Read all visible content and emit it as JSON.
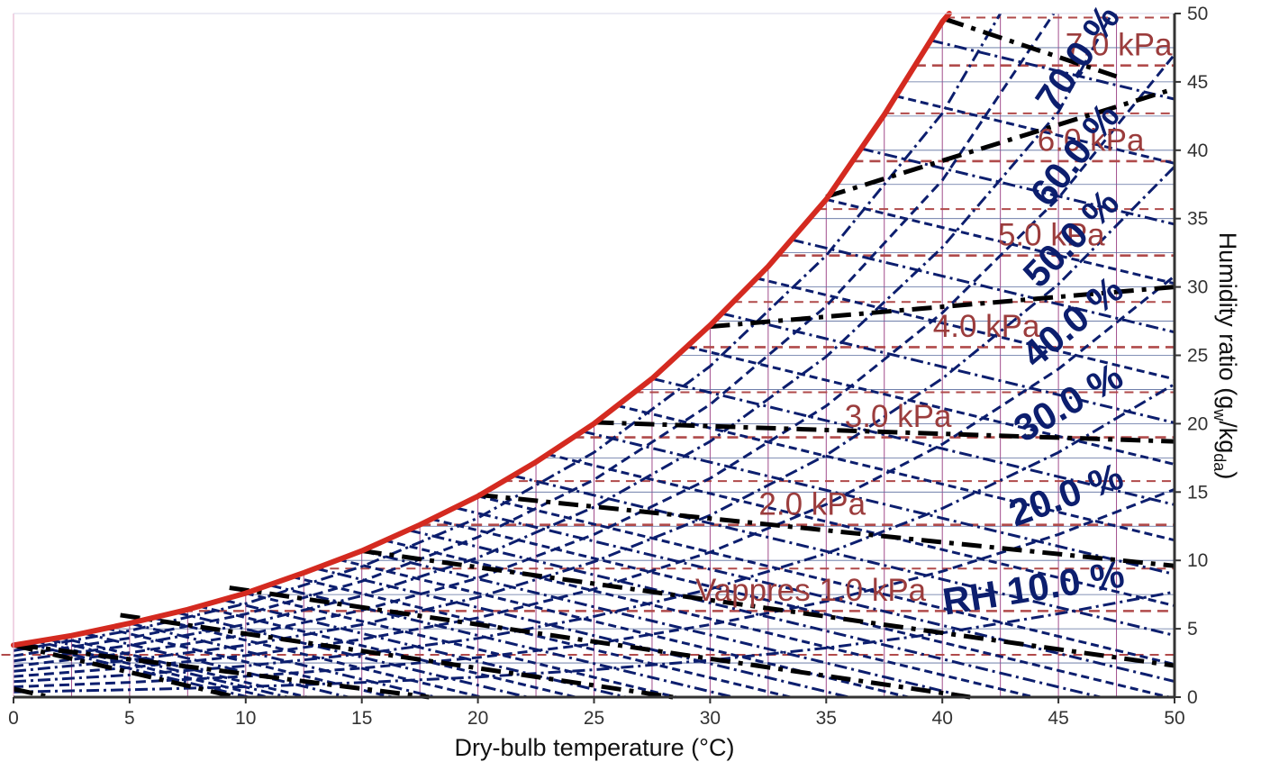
{
  "chart_data": {
    "type": "line",
    "title": "",
    "xlabel": "Dry-bulb temperature (°C)",
    "ylabel": "Humidity ratio (g",
    "ylabel_sub1": "w",
    "ylabel_mid": "/kg",
    "ylabel_sub2": "da",
    "ylabel_end": ")",
    "xlim": [
      0,
      50
    ],
    "ylim": [
      0,
      50
    ],
    "x_ticks": [
      "0",
      "5",
      "10",
      "15",
      "20",
      "25",
      "30",
      "35",
      "40",
      "45",
      "50"
    ],
    "y_ticks": [
      "0",
      "5",
      "10",
      "15",
      "20",
      "25",
      "30",
      "35",
      "40",
      "45",
      "50"
    ],
    "grid": true,
    "saturation_curve": {
      "name": "saturation",
      "x": [
        0,
        2.5,
        5,
        7.5,
        10,
        12.5,
        15,
        17.5,
        20,
        22.5,
        25,
        27.5,
        30,
        32.5,
        35,
        37.5,
        40,
        40.3
      ],
      "y": [
        3.8,
        4.5,
        5.4,
        6.4,
        7.6,
        9.1,
        10.7,
        12.6,
        14.7,
        17.2,
        20.0,
        23.3,
        27.2,
        31.5,
        36.4,
        42.6,
        49.4,
        50.0
      ]
    },
    "relative_humidity_lines": [
      {
        "rh": 10,
        "label": "RH 10.0 %",
        "x": [
          0,
          5,
          10,
          15,
          20,
          25,
          30,
          35,
          40,
          45,
          50
        ],
        "y": [
          0.38,
          0.54,
          0.76,
          1.07,
          1.47,
          2.0,
          2.7,
          3.6,
          4.7,
          6.1,
          7.7
        ]
      },
      {
        "rh": 20,
        "label": "20.0 %",
        "x": [
          0,
          5,
          10,
          15,
          20,
          25,
          30,
          35,
          40,
          45,
          50
        ],
        "y": [
          0.75,
          1.08,
          1.52,
          2.12,
          2.9,
          3.9,
          5.3,
          7.0,
          9.2,
          11.9,
          15.2
        ]
      },
      {
        "rh": 30,
        "label": "30.0 %",
        "x": [
          0,
          5,
          10,
          15,
          20,
          25,
          30,
          35,
          40,
          45,
          50
        ],
        "y": [
          1.13,
          1.62,
          2.28,
          3.17,
          4.3,
          5.9,
          7.9,
          10.5,
          13.8,
          17.9,
          22.9
        ]
      },
      {
        "rh": 40,
        "label": "40.0 %",
        "x": [
          0,
          5,
          10,
          15,
          20,
          25,
          30,
          35,
          40,
          45,
          50
        ],
        "y": [
          1.51,
          2.16,
          3.04,
          4.23,
          5.8,
          7.9,
          10.6,
          14.1,
          18.5,
          24.0,
          30.8
        ]
      },
      {
        "rh": 50,
        "label": "50.0 %",
        "x": [
          0,
          5,
          10,
          15,
          20,
          25,
          30,
          35,
          40,
          45,
          50
        ],
        "y": [
          1.89,
          2.7,
          3.8,
          5.3,
          7.3,
          9.9,
          13.3,
          17.7,
          23.3,
          30.2,
          38.8
        ]
      },
      {
        "rh": 60,
        "label": "60.0 %",
        "x": [
          0,
          5,
          10,
          15,
          20,
          25,
          30,
          35,
          40,
          45,
          50
        ],
        "y": [
          2.26,
          3.24,
          4.56,
          6.35,
          8.7,
          11.9,
          16.0,
          21.3,
          28.1,
          36.5,
          47.0
        ]
      },
      {
        "rh": 70,
        "label": "70.0 %",
        "x": [
          0,
          5,
          10,
          15,
          20,
          25,
          30,
          35,
          40,
          45,
          47.3
        ],
        "y": [
          2.64,
          3.78,
          5.32,
          7.41,
          10.2,
          13.9,
          18.7,
          24.9,
          32.9,
          42.8,
          50.0
        ]
      },
      {
        "rh": 80,
        "label": "",
        "x": [
          0,
          5,
          10,
          15,
          20,
          25,
          30,
          35,
          40,
          44.8
        ],
        "y": [
          3.02,
          4.32,
          6.08,
          8.48,
          11.7,
          15.9,
          21.4,
          28.6,
          37.8,
          50.0
        ]
      },
      {
        "rh": 90,
        "label": "",
        "x": [
          0,
          5,
          10,
          15,
          20,
          25,
          30,
          35,
          40,
          42.5
        ],
        "y": [
          3.4,
          4.86,
          6.84,
          9.55,
          13.1,
          17.9,
          24.2,
          32.3,
          42.7,
          50.0
        ]
      }
    ],
    "vapour_pressure_lines": [
      {
        "kpa": 1.0,
        "label": "Vappres 1.0 kPa",
        "y": 6.3
      },
      {
        "kpa": 2.0,
        "label": "2.0 kPa",
        "y": 12.6
      },
      {
        "kpa": 3.0,
        "label": "3.0 kPa",
        "y": 19.0
      },
      {
        "kpa": 4.0,
        "label": "4.0 kPa",
        "y": 25.6
      },
      {
        "kpa": 5.0,
        "label": "5.0 kPa",
        "y": 32.3
      },
      {
        "kpa": 6.0,
        "label": "6.0 kPa",
        "y": 39.2
      },
      {
        "kpa": 7.0,
        "label": "7.0 kPa",
        "y": 46.2
      }
    ],
    "vapour_pressure_minor_y": [
      3.1,
      9.4,
      15.8,
      22.3,
      28.9,
      35.7,
      42.7,
      49.7
    ],
    "enthalpy_lines": [
      {
        "x": [
          0,
          1.6
        ],
        "y": [
          0.6,
          0
        ]
      },
      {
        "x": [
          0,
          9.6
        ],
        "y": [
          3.8,
          0
        ]
      },
      {
        "x": [
          0.2,
          17.9
        ],
        "y": [
          3.8,
          0
        ]
      },
      {
        "x": [
          4.6,
          28.4
        ],
        "y": [
          6.0,
          0
        ]
      },
      {
        "x": [
          9.3,
          41.2
        ],
        "y": [
          8.0,
          0
        ]
      },
      {
        "x": [
          15.0,
          50
        ],
        "y": [
          10.7,
          2.3
        ]
      },
      {
        "x": [
          20.0,
          50
        ],
        "y": [
          14.8,
          9.6
        ]
      },
      {
        "x": [
          25.0,
          50
        ],
        "y": [
          20.1,
          18.7
        ]
      },
      {
        "x": [
          30.0,
          50
        ],
        "y": [
          27.1,
          30.0
        ]
      },
      {
        "x": [
          35.0,
          50
        ],
        "y": [
          36.6,
          44.5
        ]
      },
      {
        "x": [
          40.1,
          47.5
        ],
        "y": [
          49.6,
          45.4
        ]
      }
    ],
    "wetbulb_x_start": [
      0.5,
      1.0,
      1.5,
      2.0,
      3.0,
      4.0,
      5.0,
      6.0,
      7.0,
      8.0,
      9.0,
      10.0,
      11.0,
      12.0,
      13.0,
      14.0,
      15.0,
      16.0,
      17.0,
      18.0,
      19.0,
      20.0,
      21.5,
      23.0,
      24.5,
      26.0,
      27.5,
      29.0,
      30.5,
      32.0,
      33.5,
      35.0,
      36.5,
      38.0,
      39.5
    ],
    "colors": {
      "saturation": "#d42a20",
      "rh": "#0c1e6e",
      "vapour_pressure": "#b04a4a",
      "enthalpy": "#000000",
      "grid_v": "#a24d8c",
      "grid_h": "#5a6c9e",
      "axis": "#333333"
    }
  }
}
